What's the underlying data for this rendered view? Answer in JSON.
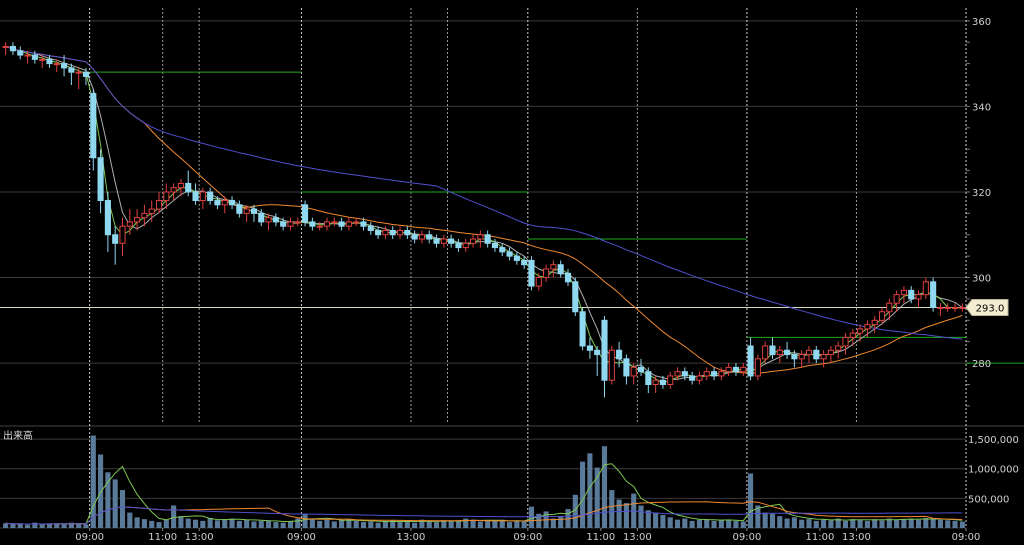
{
  "chart_data": {
    "type": "candlestick",
    "price_panel": {
      "yticks": [
        280,
        300,
        320,
        340,
        360
      ],
      "ylim": [
        266,
        363
      ],
      "current_price": 293.0,
      "current_price_label": "293.0",
      "grid": true
    },
    "volume_panel": {
      "title": "出来高",
      "yticks": [
        500000,
        1000000,
        1500000
      ],
      "ytick_labels": [
        "500,000",
        "1,000,000",
        "1,500,000"
      ],
      "ylim": [
        0,
        1620000
      ]
    },
    "x_tick_labels": [
      {
        "label": "09:00",
        "index": 12
      },
      {
        "label": "11:00",
        "index": 22
      },
      {
        "label": "13:00",
        "index": 27
      },
      {
        "label": "09:00",
        "index": 41
      },
      {
        "label": "13:00",
        "index": 56
      },
      {
        "label": "09:00",
        "index": 72
      },
      {
        "label": "11:00",
        "index": 82
      },
      {
        "label": "13:00",
        "index": 87
      },
      {
        "label": "09:00",
        "index": 102
      },
      {
        "label": "11:00",
        "index": 112
      },
      {
        "label": "13:00",
        "index": 117
      },
      {
        "label": "09:00",
        "index": 132
      },
      {
        "label": "11:00",
        "index": 142
      },
      {
        "label": "13:00",
        "index": 147
      }
    ],
    "session_dividers": [
      12,
      41,
      72,
      102,
      132
    ],
    "minor_dividers": [
      22,
      27,
      56,
      61,
      87,
      117,
      147,
      151
    ],
    "prev_close_levels": [
      {
        "from": 0,
        "to": 12,
        "value": 365
      },
      {
        "from": 12,
        "to": 41,
        "value": 348
      },
      {
        "from": 41,
        "to": 72,
        "value": 320
      },
      {
        "from": 72,
        "to": 102,
        "value": 309
      },
      {
        "from": 102,
        "to": 132,
        "value": 286
      },
      {
        "from": 132,
        "to": 160,
        "value": 280
      }
    ],
    "candles": [
      [
        354,
        355,
        352,
        354
      ],
      [
        354,
        355,
        352,
        353
      ],
      [
        353,
        354,
        351,
        352
      ],
      [
        352,
        353,
        350,
        352
      ],
      [
        352,
        353,
        350,
        351
      ],
      [
        351,
        352,
        349,
        351
      ],
      [
        351,
        352,
        349,
        350
      ],
      [
        350,
        351,
        348,
        350
      ],
      [
        350,
        352,
        347,
        349
      ],
      [
        349,
        350,
        345,
        348
      ],
      [
        348,
        349,
        344,
        348
      ],
      [
        348,
        349,
        345,
        347
      ],
      [
        343,
        344,
        325,
        328
      ],
      [
        328,
        330,
        315,
        318
      ],
      [
        318,
        320,
        306,
        310
      ],
      [
        310,
        312,
        303,
        308
      ],
      [
        308,
        314,
        305,
        312
      ],
      [
        312,
        316,
        310,
        313
      ],
      [
        313,
        316,
        311,
        314
      ],
      [
        314,
        317,
        312,
        315
      ],
      [
        315,
        318,
        313,
        316
      ],
      [
        316,
        320,
        315,
        318
      ],
      [
        318,
        322,
        316,
        320
      ],
      [
        320,
        322,
        318,
        321
      ],
      [
        321,
        323,
        319,
        322
      ],
      [
        322,
        325,
        319,
        320
      ],
      [
        320,
        322,
        317,
        318
      ],
      [
        318,
        321,
        316,
        320
      ],
      [
        320,
        321,
        317,
        318
      ],
      [
        318,
        319,
        316,
        317
      ],
      [
        317,
        319,
        315,
        318
      ],
      [
        318,
        319,
        316,
        317
      ],
      [
        317,
        318,
        314,
        315
      ],
      [
        315,
        317,
        313,
        316
      ],
      [
        316,
        317,
        313,
        315
      ],
      [
        315,
        316,
        312,
        313
      ],
      [
        313,
        315,
        311,
        314
      ],
      [
        314,
        315,
        312,
        313
      ],
      [
        313,
        314,
        311,
        312
      ],
      [
        312,
        314,
        311,
        313
      ],
      [
        313,
        314,
        312,
        313
      ],
      [
        317,
        318,
        312,
        313
      ],
      [
        313,
        314,
        311,
        312
      ],
      [
        312,
        313,
        311,
        312
      ],
      [
        312,
        314,
        311,
        313
      ],
      [
        313,
        314,
        312,
        313
      ],
      [
        313,
        314,
        311,
        312
      ],
      [
        312,
        314,
        311,
        313
      ],
      [
        313,
        314,
        312,
        313
      ],
      [
        313,
        314,
        311,
        312
      ],
      [
        312,
        313,
        310,
        311
      ],
      [
        311,
        312,
        309,
        310
      ],
      [
        310,
        312,
        309,
        311
      ],
      [
        311,
        312,
        309,
        310
      ],
      [
        310,
        312,
        309,
        311
      ],
      [
        311,
        312,
        309,
        310
      ],
      [
        310,
        311,
        308,
        309
      ],
      [
        309,
        311,
        308,
        310
      ],
      [
        310,
        311,
        308,
        309
      ],
      [
        309,
        310,
        307,
        308
      ],
      [
        308,
        310,
        307,
        309
      ],
      [
        309,
        310,
        307,
        308
      ],
      [
        308,
        309,
        306,
        307
      ],
      [
        307,
        309,
        306,
        308
      ],
      [
        308,
        310,
        307,
        309
      ],
      [
        309,
        311,
        307,
        310
      ],
      [
        310,
        311,
        307,
        308
      ],
      [
        308,
        309,
        306,
        307
      ],
      [
        307,
        308,
        305,
        306
      ],
      [
        306,
        307,
        304,
        305
      ],
      [
        305,
        306,
        303,
        304
      ],
      [
        304,
        305,
        302,
        303
      ],
      [
        304,
        305,
        297,
        298
      ],
      [
        298,
        301,
        297,
        300
      ],
      [
        300,
        303,
        299,
        302
      ],
      [
        302,
        304,
        300,
        303
      ],
      [
        303,
        304,
        300,
        301
      ],
      [
        301,
        302,
        298,
        299
      ],
      [
        299,
        300,
        291,
        292
      ],
      [
        292,
        293,
        283,
        284
      ],
      [
        284,
        286,
        281,
        283
      ],
      [
        283,
        284,
        277,
        282
      ],
      [
        290,
        291,
        272,
        276
      ],
      [
        276,
        284,
        275,
        283
      ],
      [
        283,
        285,
        279,
        281
      ],
      [
        281,
        282,
        275,
        277
      ],
      [
        277,
        280,
        275,
        279
      ],
      [
        279,
        281,
        277,
        278
      ],
      [
        278,
        279,
        273,
        275
      ],
      [
        275,
        277,
        273,
        276
      ],
      [
        276,
        277,
        274,
        275
      ],
      [
        275,
        278,
        274,
        277
      ],
      [
        277,
        279,
        276,
        278
      ],
      [
        278,
        279,
        276,
        277
      ],
      [
        277,
        278,
        275,
        276
      ],
      [
        276,
        278,
        275,
        277
      ],
      [
        277,
        279,
        276,
        278
      ],
      [
        278,
        279,
        276,
        277
      ],
      [
        277,
        279,
        276,
        278
      ],
      [
        278,
        280,
        277,
        279
      ],
      [
        279,
        280,
        277,
        278
      ],
      [
        278,
        280,
        277,
        279
      ],
      [
        284,
        286,
        276,
        277
      ],
      [
        277,
        282,
        276,
        281
      ],
      [
        281,
        285,
        280,
        284
      ],
      [
        284,
        286,
        281,
        282
      ],
      [
        282,
        284,
        280,
        283
      ],
      [
        283,
        285,
        281,
        282
      ],
      [
        282,
        283,
        279,
        281
      ],
      [
        281,
        283,
        279,
        282
      ],
      [
        282,
        284,
        280,
        283
      ],
      [
        283,
        284,
        280,
        281
      ],
      [
        281,
        283,
        279,
        282
      ],
      [
        282,
        284,
        280,
        283
      ],
      [
        283,
        285,
        281,
        284
      ],
      [
        284,
        287,
        282,
        286
      ],
      [
        286,
        288,
        284,
        287
      ],
      [
        287,
        289,
        285,
        288
      ],
      [
        288,
        290,
        286,
        289
      ],
      [
        289,
        291,
        287,
        290
      ],
      [
        290,
        293,
        289,
        292
      ],
      [
        292,
        295,
        290,
        294
      ],
      [
        294,
        297,
        292,
        296
      ],
      [
        296,
        298,
        294,
        297
      ],
      [
        297,
        298,
        294,
        295
      ],
      [
        295,
        297,
        293,
        296
      ],
      [
        296,
        300,
        295,
        299
      ],
      [
        299,
        300,
        292,
        293
      ],
      [
        293,
        294,
        291,
        293
      ],
      [
        293,
        294,
        292,
        293
      ],
      [
        293,
        294,
        292,
        293
      ],
      [
        293,
        294,
        292,
        293
      ]
    ],
    "volumes": [
      80000,
      60000,
      70000,
      50000,
      90000,
      60000,
      70000,
      80000,
      60000,
      90000,
      70000,
      60000,
      1560000,
      1240000,
      940000,
      820000,
      640000,
      260000,
      180000,
      150000,
      120000,
      100000,
      140000,
      380000,
      200000,
      160000,
      140000,
      120000,
      170000,
      130000,
      150000,
      160000,
      120000,
      140000,
      110000,
      120000,
      130000,
      100000,
      90000,
      120000,
      160000,
      240000,
      160000,
      120000,
      140000,
      110000,
      130000,
      150000,
      120000,
      100000,
      110000,
      90000,
      120000,
      130000,
      100000,
      110000,
      90000,
      140000,
      120000,
      100000,
      130000,
      110000,
      120000,
      160000,
      140000,
      110000,
      130000,
      120000,
      140000,
      100000,
      120000,
      110000,
      360000,
      240000,
      280000,
      160000,
      200000,
      320000,
      560000,
      1120000,
      1260000,
      1020000,
      1380000,
      640000,
      480000,
      420000,
      580000,
      380000,
      300000,
      260000,
      220000,
      180000,
      140000,
      160000,
      120000,
      140000,
      150000,
      120000,
      140000,
      130000,
      120000,
      110000,
      920000,
      380000,
      260000,
      240000,
      200000,
      160000,
      180000,
      140000,
      150000,
      120000,
      140000,
      130000,
      160000,
      120000,
      150000,
      140000,
      120000,
      150000,
      130000,
      160000,
      140000,
      150000,
      160000,
      140000,
      170000,
      150000,
      140000,
      130000,
      120000,
      110000
    ],
    "moving_averages": [
      {
        "color": "#b0b0b0",
        "period": 5
      },
      {
        "color": "#7ec850",
        "period": 3
      },
      {
        "color": "#f08a30",
        "period": 20
      },
      {
        "color": "#5050d0",
        "period": 60
      }
    ],
    "colors": {
      "up": "#e04040",
      "down": "#8fd8f0",
      "grid": "#3a3a3a",
      "prev_close": "#1fa81f",
      "current_line": "#d8d8c0",
      "volume_bar": "#5a7a9a"
    }
  }
}
